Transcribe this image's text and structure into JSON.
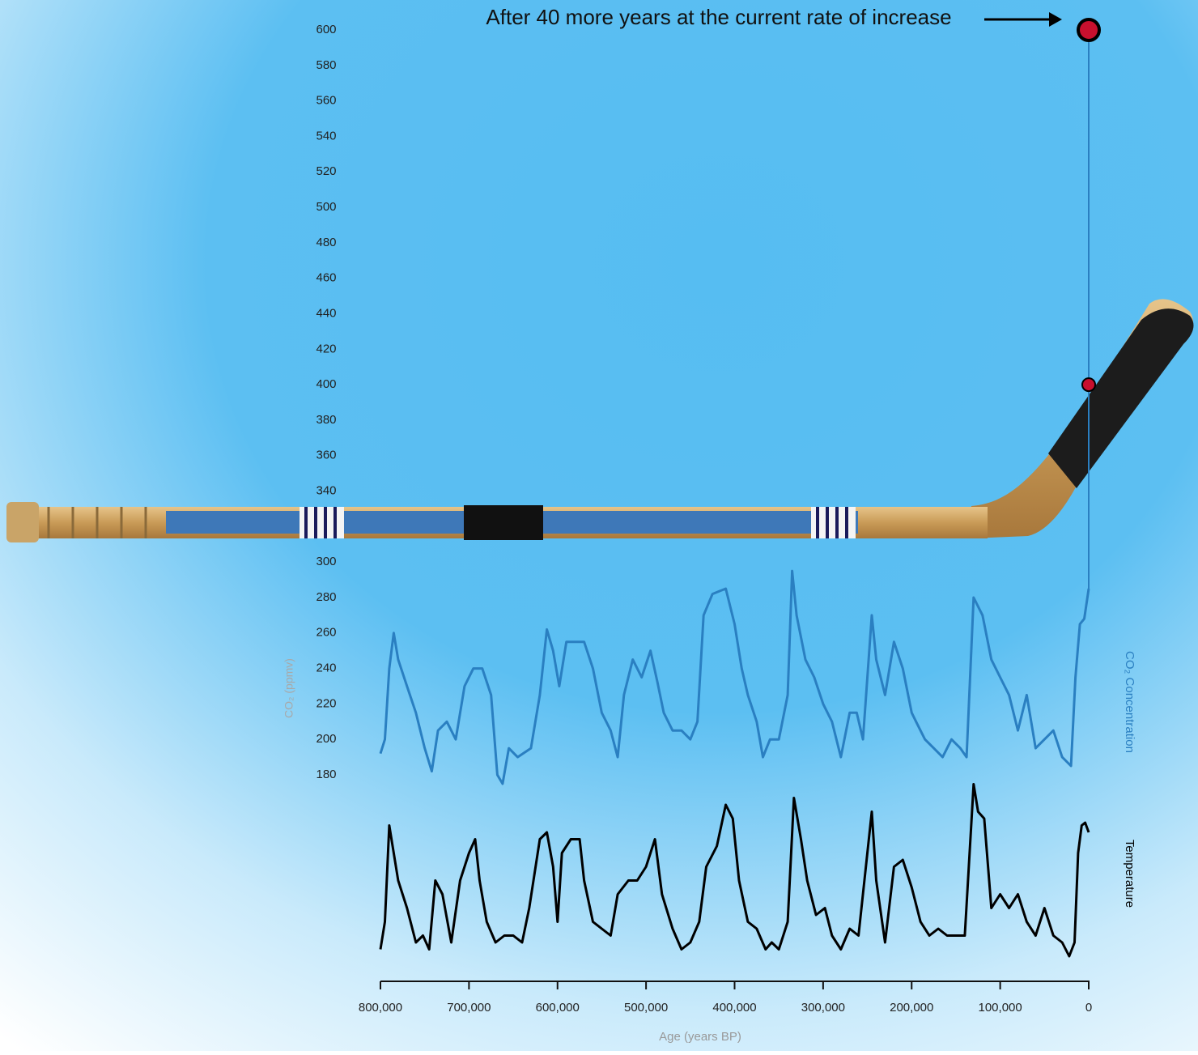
{
  "chart_data": {
    "type": "line",
    "annotation": "After 40 more years at the current rate of increase",
    "x_label": "Age (years BP)",
    "y_label": "CO₂ (ppmv)",
    "xlim": [
      800000,
      0
    ],
    "xticks": [
      {
        "value": 800000,
        "label": "800,000"
      },
      {
        "value": 700000,
        "label": "700,000"
      },
      {
        "value": 600000,
        "label": "600,000"
      },
      {
        "value": 500000,
        "label": "500,000"
      },
      {
        "value": 400000,
        "label": "400,000"
      },
      {
        "value": 300000,
        "label": "300,000"
      },
      {
        "value": 200000,
        "label": "200,000"
      },
      {
        "value": 100000,
        "label": "100,000"
      },
      0
    ],
    "ylim": [
      180,
      600
    ],
    "yticks": [
      180,
      200,
      220,
      240,
      260,
      280,
      300,
      340,
      360,
      380,
      400,
      420,
      440,
      460,
      480,
      500,
      520,
      540,
      560,
      580,
      600
    ],
    "y2lim": [
      -10.5,
      3.5
    ],
    "series": [
      {
        "name": "CO₂ Concentration",
        "color": "#2a7fc1",
        "x": [
          800000,
          795000,
          790000,
          785000,
          780000,
          770000,
          760000,
          750000,
          742000,
          735000,
          725000,
          715000,
          705000,
          695000,
          685000,
          675000,
          668000,
          662000,
          655000,
          645000,
          630000,
          620000,
          612000,
          605000,
          598000,
          590000,
          580000,
          570000,
          560000,
          550000,
          540000,
          532000,
          525000,
          515000,
          505000,
          495000,
          487000,
          480000,
          470000,
          460000,
          450000,
          442000,
          435000,
          425000,
          410000,
          400000,
          392000,
          385000,
          375000,
          368000,
          360000,
          350000,
          340000,
          335000,
          330000,
          320000,
          310000,
          300000,
          290000,
          280000,
          270000,
          262000,
          255000,
          245000,
          240000,
          230000,
          220000,
          210000,
          200000,
          195000,
          185000,
          175000,
          165000,
          155000,
          145000,
          138000,
          130000,
          120000,
          110000,
          100000,
          90000,
          80000,
          70000,
          60000,
          50000,
          40000,
          30000,
          20000,
          15000,
          10000,
          5000,
          0
        ],
        "values": [
          192,
          200,
          240,
          260,
          245,
          230,
          215,
          195,
          182,
          205,
          210,
          200,
          230,
          240,
          240,
          225,
          180,
          175,
          195,
          190,
          195,
          225,
          262,
          250,
          230,
          255,
          255,
          255,
          240,
          215,
          205,
          190,
          225,
          245,
          235,
          250,
          232,
          215,
          205,
          205,
          200,
          210,
          270,
          282,
          285,
          265,
          240,
          225,
          210,
          190,
          200,
          200,
          225,
          295,
          270,
          245,
          235,
          220,
          210,
          190,
          215,
          215,
          200,
          270,
          245,
          225,
          255,
          240,
          215,
          210,
          200,
          195,
          190,
          200,
          195,
          190,
          280,
          270,
          245,
          235,
          225,
          205,
          225,
          195,
          200,
          205,
          190,
          185,
          235,
          265,
          268,
          285
        ]
      },
      {
        "name": "Temperature",
        "color": "#000000",
        "axis": "y2",
        "x": [
          800000,
          795000,
          790000,
          785000,
          780000,
          770000,
          760000,
          752000,
          745000,
          738000,
          730000,
          720000,
          710000,
          700000,
          693000,
          688000,
          680000,
          670000,
          660000,
          650000,
          640000,
          632000,
          620000,
          612000,
          605000,
          600000,
          595000,
          585000,
          575000,
          570000,
          560000,
          550000,
          540000,
          532000,
          520000,
          510000,
          500000,
          490000,
          482000,
          470000,
          460000,
          450000,
          440000,
          432000,
          420000,
          410000,
          402000,
          395000,
          385000,
          375000,
          365000,
          358000,
          350000,
          340000,
          333000,
          325000,
          318000,
          308000,
          298000,
          290000,
          280000,
          270000,
          260000,
          245000,
          240000,
          230000,
          220000,
          210000,
          200000,
          190000,
          180000,
          170000,
          160000,
          150000,
          140000,
          130000,
          125000,
          118000,
          110000,
          100000,
          90000,
          80000,
          70000,
          60000,
          50000,
          40000,
          30000,
          22000,
          16000,
          12000,
          8000,
          4000,
          0
        ],
        "values": [
          -9,
          -7,
          0,
          -2,
          -4,
          -6,
          -8.5,
          -8,
          -9,
          -4,
          -5,
          -8.5,
          -4,
          -2,
          -1,
          -4,
          -7,
          -8.5,
          -8,
          -8,
          -8.5,
          -6,
          -1,
          -0.5,
          -3,
          -7,
          -2,
          -1,
          -1,
          -4,
          -7,
          -7.5,
          -8,
          -5,
          -4,
          -4,
          -3,
          -1,
          -5,
          -7.5,
          -9,
          -8.5,
          -7,
          -3,
          -1.5,
          1.5,
          0.5,
          -4,
          -7,
          -7.5,
          -9,
          -8.5,
          -9,
          -7,
          2,
          -1,
          -4,
          -6.5,
          -6,
          -8,
          -9,
          -7.5,
          -8,
          1,
          -4,
          -8.5,
          -3,
          -2.5,
          -4.5,
          -7,
          -8,
          -7.5,
          -8,
          -8,
          -8,
          3,
          1,
          0.5,
          -6,
          -5,
          -6,
          -5,
          -7,
          -8,
          -6,
          -8,
          -8.5,
          -9.5,
          -8.5,
          -2,
          0,
          0.2,
          -0.5
        ]
      }
    ],
    "projection": {
      "color": "#c8102e",
      "x": [
        0,
        0
      ],
      "values": [
        400,
        600
      ]
    }
  }
}
